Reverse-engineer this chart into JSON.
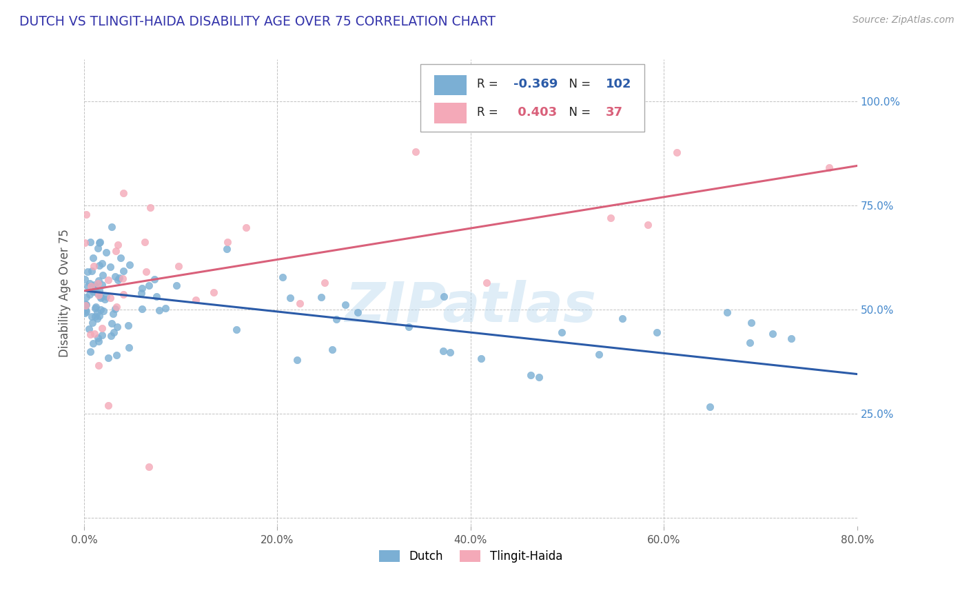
{
  "title": "DUTCH VS TLINGIT-HAIDA DISABILITY AGE OVER 75 CORRELATION CHART",
  "source": "Source: ZipAtlas.com",
  "ylabel": "Disability Age Over 75",
  "xlim": [
    0.0,
    0.8
  ],
  "ylim": [
    -0.02,
    1.1
  ],
  "yticks": [
    0.0,
    0.25,
    0.5,
    0.75,
    1.0
  ],
  "ytick_labels": [
    "",
    "25.0%",
    "50.0%",
    "75.0%",
    "100.0%"
  ],
  "xtick_labels": [
    "0.0%",
    "20.0%",
    "40.0%",
    "60.0%",
    "80.0%"
  ],
  "xticks": [
    0.0,
    0.2,
    0.4,
    0.6,
    0.8
  ],
  "dutch_color": "#7BAFD4",
  "tlingit_color": "#F4A9B8",
  "dutch_line_color": "#2B5BA8",
  "tlingit_line_color": "#D9607A",
  "dutch_R": -0.369,
  "dutch_N": 102,
  "tlingit_R": 0.403,
  "tlingit_N": 37,
  "background_color": "#ffffff",
  "grid_color": "#BBBBBB",
  "title_color": "#3333AA",
  "axis_label_color": "#555555",
  "right_tick_color": "#4488CC",
  "source_color": "#999999"
}
